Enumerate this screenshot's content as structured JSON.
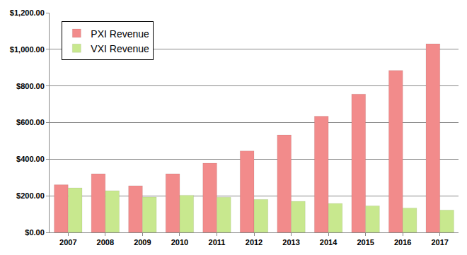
{
  "chart_data": {
    "type": "bar",
    "categories": [
      "2007",
      "2008",
      "2009",
      "2010",
      "2011",
      "2012",
      "2013",
      "2014",
      "2015",
      "2016",
      "2017"
    ],
    "series": [
      {
        "name": "PXI Revenue",
        "color": "#f28b8b",
        "values": [
          260,
          320,
          255,
          320,
          378,
          445,
          532,
          635,
          755,
          885,
          1030
        ]
      },
      {
        "name": "VXI Revenue",
        "color": "#c8e88e",
        "values": [
          243,
          228,
          193,
          203,
          192,
          180,
          170,
          158,
          145,
          133,
          122
        ]
      }
    ],
    "ylim": [
      0,
      1200
    ],
    "yticks": [
      {
        "value": 0,
        "label": "$0.00"
      },
      {
        "value": 200,
        "label": "$200.00"
      },
      {
        "value": 400,
        "label": "$400.00"
      },
      {
        "value": 600,
        "label": "$600.00"
      },
      {
        "value": 800,
        "label": "$800.00"
      },
      {
        "value": 1000,
        "label": "$1,000.00"
      },
      {
        "value": 1200,
        "label": "$1,200.00"
      }
    ],
    "grid": true,
    "legend": "top left"
  }
}
